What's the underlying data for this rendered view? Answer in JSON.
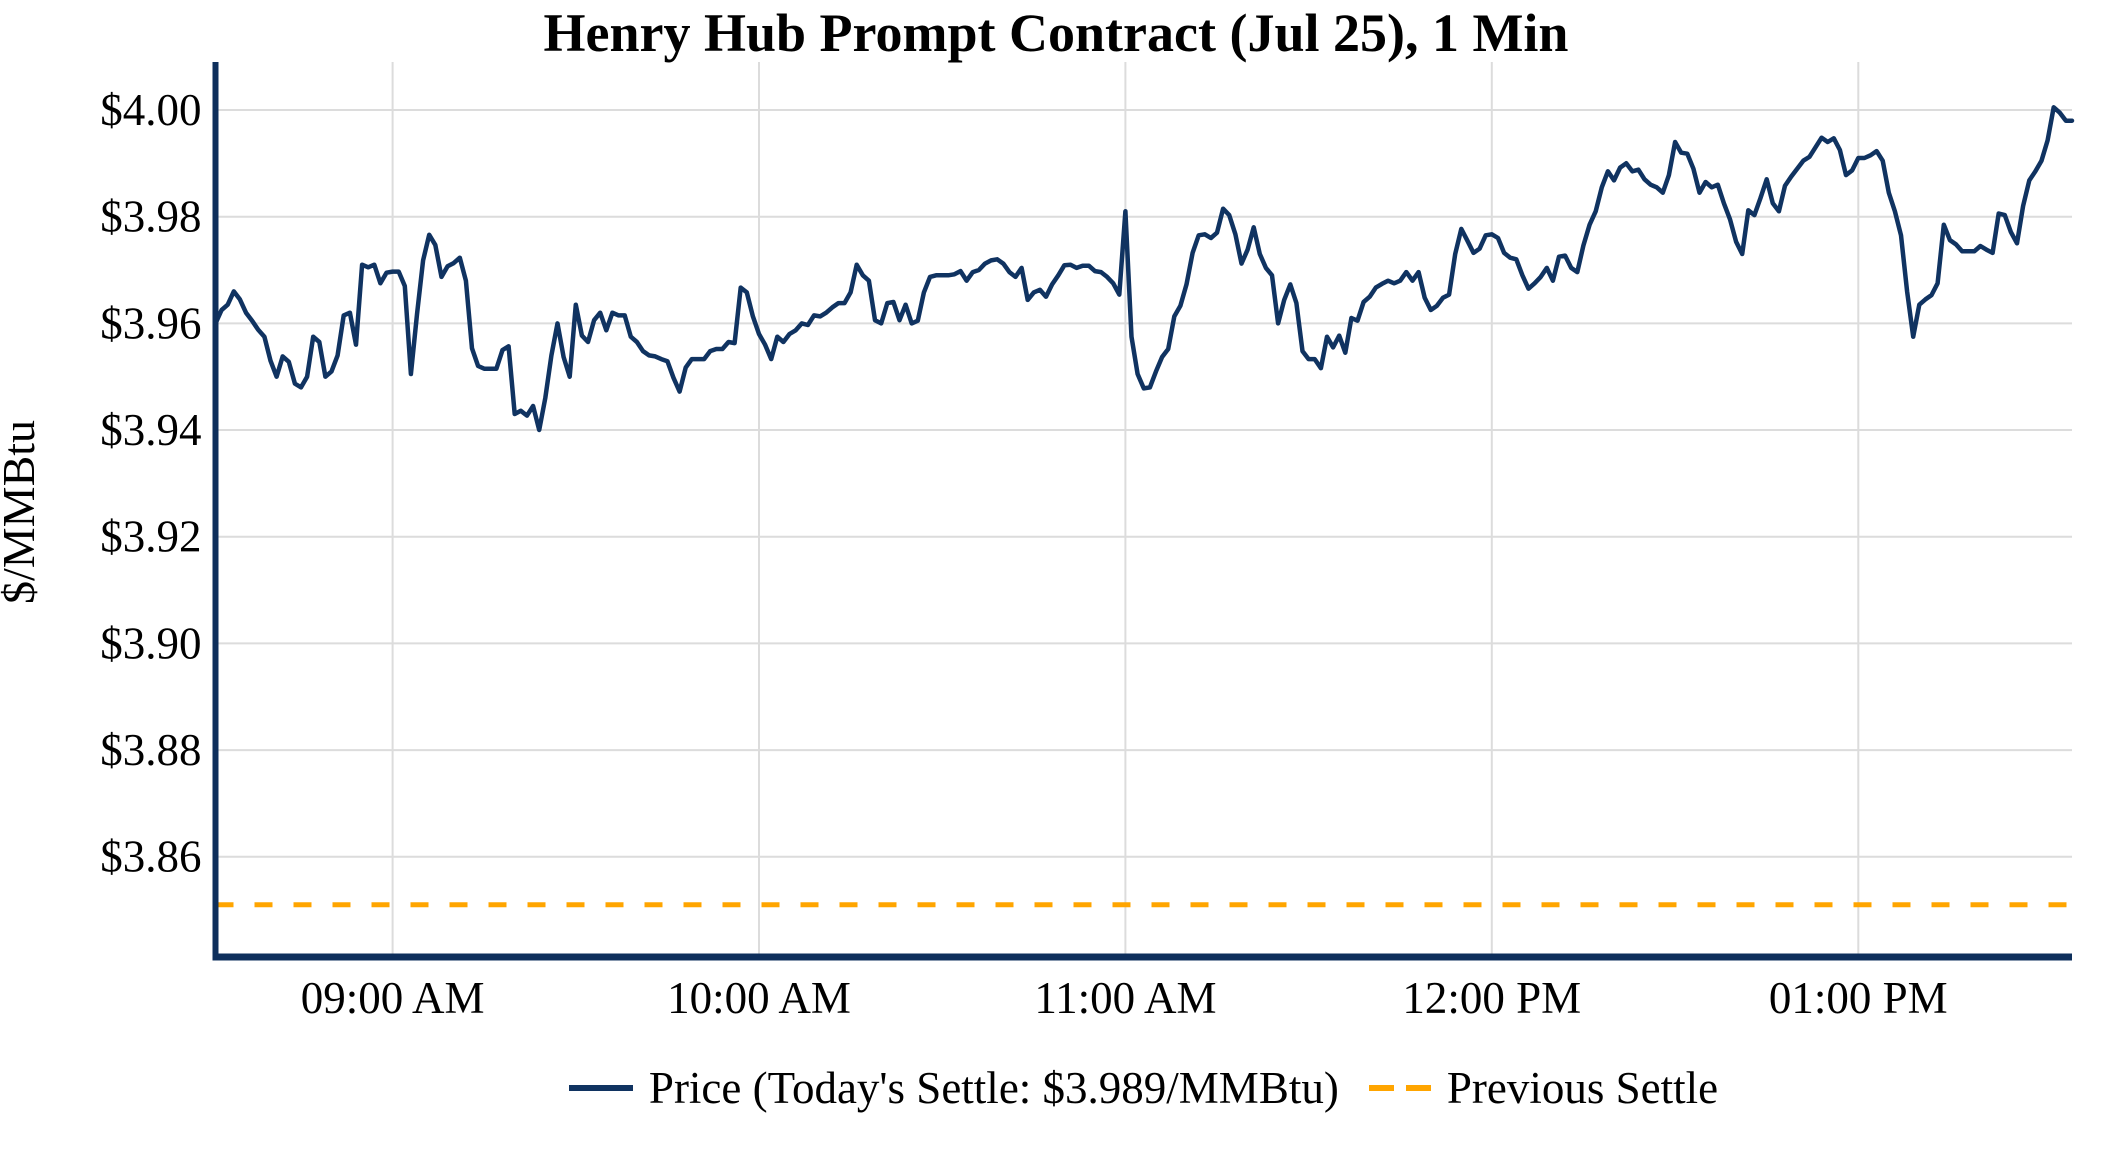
{
  "title": "Henry Hub Prompt Contract (Jul 25), 1 Min",
  "legend": {
    "price_label": "Price (Today's Settle: $3.989/MMBtu)",
    "previous_settle_label": "Previous Settle"
  },
  "colors": {
    "price_line": "#103361",
    "previous_settle_line": "#FFA500",
    "gridline": "#DCDCDC",
    "spine": "#0E2F5C",
    "text": "#000000",
    "background": "#FFFFFF"
  },
  "chart_data": {
    "type": "line",
    "title": "Henry Hub Prompt Contract (Jul 25), 1 Min",
    "xlabel": "",
    "ylabel": "$/MMBtu",
    "grid": true,
    "legend_position": "bottom-center",
    "todays_settle": 3.989,
    "previous_settle": 3.851,
    "x_axis": {
      "tick_minutes": [
        540,
        600,
        660,
        720,
        780
      ],
      "tick_labels": [
        "09:00 AM",
        "10:00 AM",
        "11:00 AM",
        "12:00 PM",
        "01:00 PM"
      ],
      "xlim_minutes": [
        511,
        815
      ],
      "start_time": "08:31 AM",
      "end_time": "01:35 PM"
    },
    "y_axis": {
      "ticks": [
        3.86,
        3.88,
        3.9,
        3.92,
        3.94,
        3.96,
        3.98,
        4.0
      ],
      "tick_labels": [
        "$3.86",
        "$3.88",
        "$3.90",
        "$3.92",
        "$3.94",
        "$3.96",
        "$3.98",
        "$4.00"
      ],
      "ylim": [
        3.8412,
        4.009
      ]
    },
    "series": [
      {
        "name": "Price",
        "type": "line",
        "style": "solid",
        "color": "#103361",
        "x_start_minutes": 511,
        "interval_minutes": 1,
        "values": [
          3.96,
          3.9625,
          3.9635,
          3.966,
          3.9645,
          3.962,
          3.9605,
          3.9588,
          3.9575,
          3.953,
          3.95,
          3.9538,
          3.9528,
          3.9487,
          3.948,
          3.95,
          3.9575,
          3.9565,
          3.95,
          3.951,
          3.954,
          3.9615,
          3.962,
          3.956,
          3.971,
          3.9705,
          3.971,
          3.9675,
          3.9695,
          3.9697,
          3.9697,
          3.967,
          3.9505,
          3.9617,
          3.9718,
          3.9766,
          3.9747,
          3.9687,
          3.9707,
          3.9713,
          3.9723,
          3.968,
          3.9553,
          3.952,
          3.9515,
          3.9515,
          3.9515,
          3.955,
          3.9557,
          3.943,
          3.9436,
          3.9427,
          3.9445,
          3.94,
          3.946,
          3.954,
          3.96,
          3.9537,
          3.95,
          3.9635,
          3.9577,
          3.9565,
          3.9606,
          3.962,
          3.9587,
          3.962,
          3.9615,
          3.9615,
          3.9575,
          3.9565,
          3.9548,
          3.954,
          3.9538,
          3.9533,
          3.9529,
          3.9498,
          3.9472,
          3.9517,
          3.9533,
          3.9533,
          3.9533,
          3.9548,
          3.9552,
          3.9552,
          3.9565,
          3.9563,
          3.9667,
          3.9658,
          3.9613,
          3.958,
          3.956,
          3.9533,
          3.9575,
          3.9565,
          3.958,
          3.9587,
          3.96,
          3.9597,
          3.9615,
          3.9613,
          3.962,
          3.963,
          3.9638,
          3.9638,
          3.9658,
          3.971,
          3.969,
          3.968,
          3.9606,
          3.96,
          3.9638,
          3.964,
          3.9606,
          3.9635,
          3.96,
          3.9605,
          3.9658,
          3.9687,
          3.969,
          3.969,
          3.969,
          3.9692,
          3.9698,
          3.968,
          3.9696,
          3.97,
          3.9712,
          3.9718,
          3.972,
          3.9712,
          3.9696,
          3.9687,
          3.9704,
          3.9644,
          3.9658,
          3.9663,
          3.965,
          3.9673,
          3.969,
          3.9709,
          3.971,
          3.9704,
          3.9708,
          3.9708,
          3.9698,
          3.9696,
          3.9687,
          3.9675,
          3.9654,
          3.981,
          3.9575,
          3.9505,
          3.9478,
          3.948,
          3.951,
          3.9537,
          3.9552,
          3.9613,
          3.9633,
          3.9673,
          3.9732,
          3.9765,
          3.9767,
          3.976,
          3.977,
          3.9815,
          3.9803,
          3.9767,
          3.9712,
          3.9738,
          3.978,
          3.973,
          3.9704,
          3.969,
          3.96,
          3.9644,
          3.9673,
          3.9638,
          3.9548,
          3.9533,
          3.9533,
          3.9516,
          3.9575,
          3.9555,
          3.9577,
          3.9545,
          3.961,
          3.9605,
          3.964,
          3.965,
          3.9667,
          3.9674,
          3.968,
          3.9675,
          3.968,
          3.9696,
          3.968,
          3.9696,
          3.9648,
          3.9625,
          3.9633,
          3.9648,
          3.9654,
          3.973,
          3.9777,
          3.9755,
          3.9732,
          3.974,
          3.9765,
          3.9767,
          3.976,
          3.9732,
          3.9723,
          3.972,
          3.969,
          3.9665,
          3.9675,
          3.9687,
          3.9704,
          3.968,
          3.9725,
          3.9727,
          3.9704,
          3.9696,
          3.9746,
          3.9785,
          3.981,
          3.9855,
          3.9885,
          3.9868,
          3.9892,
          3.99,
          3.9885,
          3.9888,
          3.987,
          3.986,
          3.9855,
          3.9845,
          3.9878,
          3.994,
          3.992,
          3.9918,
          3.989,
          3.9845,
          3.9865,
          3.9855,
          3.986,
          3.9825,
          3.9795,
          3.9753,
          3.973,
          3.9812,
          3.9803,
          3.9835,
          3.987,
          3.9825,
          3.981,
          3.9858,
          3.9875,
          3.989,
          3.9905,
          3.9912,
          3.993,
          3.9948,
          3.994,
          3.9947,
          3.9925,
          3.9878,
          3.9887,
          3.991,
          3.991,
          3.9915,
          3.9923,
          3.9905,
          3.9845,
          3.981,
          3.9765,
          3.966,
          3.9575,
          3.9635,
          3.9645,
          3.9653,
          3.9675,
          3.9785,
          3.9756,
          3.9748,
          3.9735,
          3.9735,
          3.9735,
          3.9745,
          3.9738,
          3.9732,
          3.9806,
          3.9803,
          3.9771,
          3.975,
          3.982,
          3.9868,
          3.9885,
          3.9905,
          3.9943,
          4.0005,
          3.9995,
          3.998,
          3.998
        ]
      },
      {
        "name": "Previous Settle",
        "type": "hline",
        "style": "dashed",
        "color": "#FFA500",
        "value": 3.851
      }
    ]
  }
}
